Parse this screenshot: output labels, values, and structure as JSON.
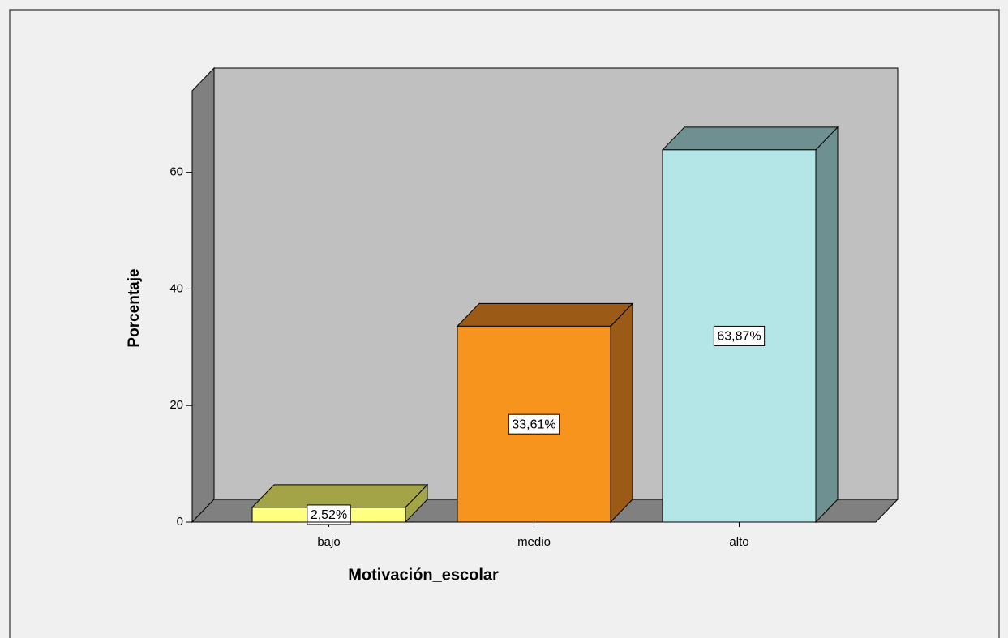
{
  "chart_data": {
    "type": "bar3d",
    "categories": [
      "bajo",
      "medio",
      "alto"
    ],
    "values": [
      2.52,
      33.61,
      63.87
    ],
    "value_labels": [
      "2,52%",
      "33,61%",
      "63,87%"
    ],
    "colors": [
      "#ffff80",
      "#f7941d",
      "#b4e6e8"
    ],
    "shade_colors": [
      "#a3a347",
      "#9b5b16",
      "#6e9090"
    ],
    "x_label": "Motivación_escolar",
    "y_label": "Porcentaje",
    "ylim": [
      0,
      74
    ],
    "yticks": [
      0,
      20,
      40,
      60
    ],
    "grid": false
  }
}
